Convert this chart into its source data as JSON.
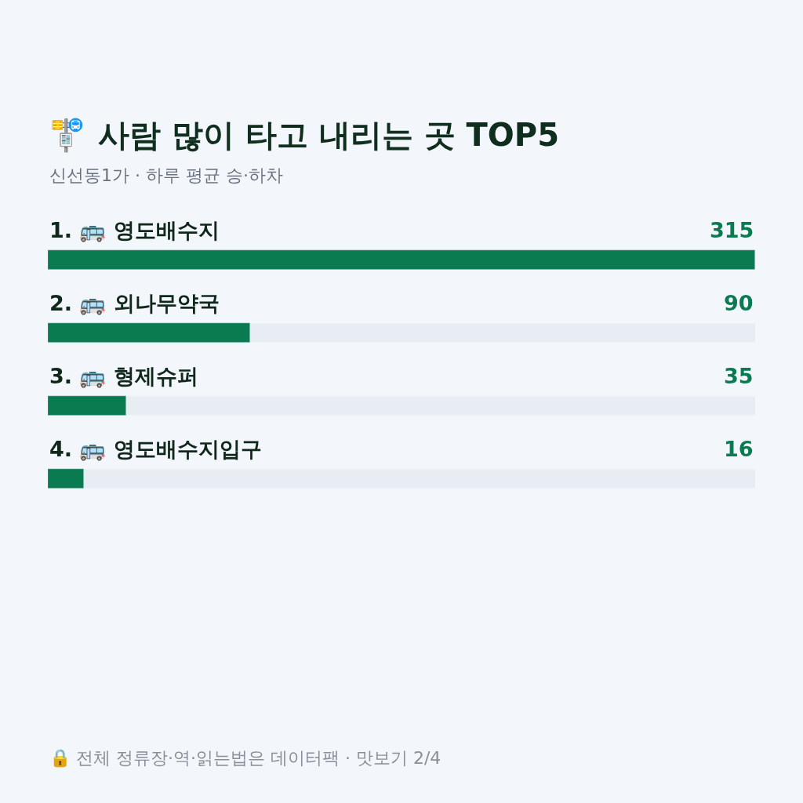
{
  "chart_data": {
    "type": "bar",
    "orientation": "horizontal",
    "title": "🚏 사람 많이 타고 내리는 곳 TOP5",
    "subtitle": "신선동1가 · 하루 평균 승·하차",
    "categories": [
      "1. 🚌 영도배수지",
      "2. 🚌 외나무약국",
      "3. 🚌 형제슈퍼",
      "4. 🚌 영도배수지입구"
    ],
    "values": [
      315,
      90,
      35,
      16
    ],
    "color": "#0a7a50",
    "data_labels": true,
    "grid": false,
    "legend": false,
    "annotations": [
      "🔒 전체 정류장·역·읽는법은 데이터팩 · 맛보기 2/4"
    ]
  }
}
